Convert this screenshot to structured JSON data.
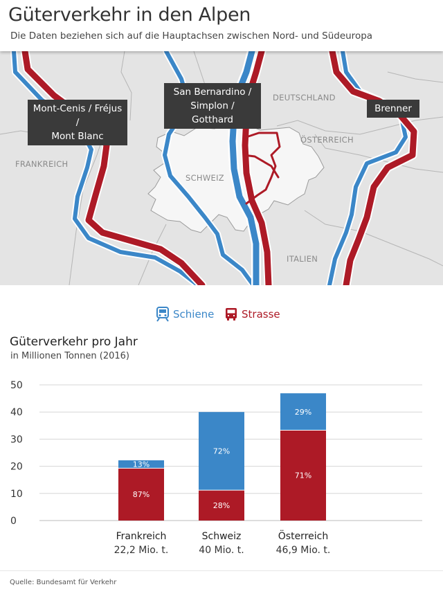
{
  "header": {
    "title": "Güterverkehr in den Alpen",
    "subtitle": "Die Daten beziehen sich auf die Hauptachsen zwischen Nord- und Südeuropa"
  },
  "map": {
    "country_labels": {
      "frankreich": "FRANKREICH",
      "schweiz": "SCHWEIZ",
      "deutschland": "DEUTSCHLAND",
      "oesterreich": "ÖSTERREICH",
      "italien": "ITALIEN"
    },
    "callouts": {
      "mont_cenis_line1": "Mont-Cenis / Fréjus /",
      "mont_cenis_line2": "Mont Blanc",
      "san_bernardino_line1": "San Bernardino /",
      "san_bernardino_line2": "Simplon / Gotthard",
      "brenner": "Brenner"
    }
  },
  "legend": {
    "rail_label": "Schiene",
    "road_label": "Strasse",
    "rail_icon": "train-icon",
    "road_icon": "truck-icon"
  },
  "colors": {
    "rail": "#3b87c8",
    "road": "#ad1a26",
    "map_bg": "#e4e4e4",
    "switzerland": "#f6f6f6"
  },
  "chart_title": "Güterverkehr pro Jahr",
  "chart_subtitle": "in Millionen Tonnen (2016)",
  "chart_data": {
    "type": "bar",
    "stacked": true,
    "categories": [
      "Frankreich",
      "Schweiz",
      "Österreich"
    ],
    "category_totals": [
      "22,2 Mio. t.",
      "40 Mio. t.",
      "46,9 Mio. t."
    ],
    "totals": [
      22.2,
      40,
      46.9
    ],
    "series": [
      {
        "name": "Strasse",
        "values": [
          19.3,
          11.2,
          33.3
        ],
        "labels": [
          "87%",
          "28%",
          "71%"
        ]
      },
      {
        "name": "Schiene",
        "values": [
          2.9,
          28.8,
          13.6
        ],
        "labels": [
          "13%",
          "72%",
          "29%"
        ]
      }
    ],
    "ylim": [
      0,
      50
    ],
    "yticks": [
      0,
      10,
      20,
      30,
      40,
      50
    ],
    "grid": true
  },
  "source": "Quelle: Bundesamt für Verkehr"
}
